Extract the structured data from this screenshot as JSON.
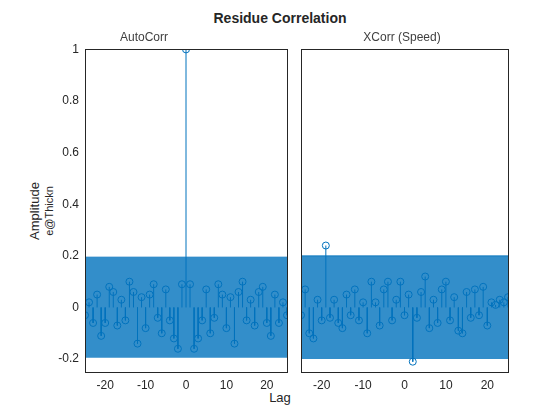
{
  "title": "Residue Correlation",
  "xlabel": "Lag",
  "ylabel": [
    "Amplitude",
    "e@Thickn"
  ],
  "chart_data": [
    {
      "type": "stem",
      "title": "AutoCorr",
      "color": "#0072BD",
      "marker": "circle",
      "grid": false,
      "x": [
        -25,
        -24,
        -23,
        -22,
        -21,
        -20,
        -19,
        -18,
        -17,
        -16,
        -15,
        -14,
        -13,
        -12,
        -11,
        -10,
        -9,
        -8,
        -7,
        -6,
        -5,
        -4,
        -3,
        -2,
        -1,
        0,
        1,
        2,
        3,
        4,
        5,
        6,
        7,
        8,
        9,
        10,
        11,
        12,
        13,
        14,
        15,
        16,
        17,
        18,
        19,
        20,
        21,
        22,
        23,
        24,
        25
      ],
      "values": [
        -0.03,
        0.02,
        -0.06,
        0.05,
        -0.11,
        -0.06,
        0.08,
        0.06,
        -0.07,
        0.03,
        -0.05,
        0.1,
        0.06,
        -0.14,
        0.04,
        -0.08,
        0.05,
        0.09,
        -0.04,
        -0.1,
        0.07,
        -0.05,
        -0.12,
        -0.16,
        0.09,
        1,
        0.09,
        -0.16,
        -0.12,
        -0.05,
        0.07,
        -0.1,
        -0.04,
        0.09,
        0.05,
        -0.08,
        0.04,
        -0.14,
        0.06,
        0.1,
        -0.05,
        0.03,
        -0.07,
        0.06,
        0.08,
        -0.06,
        -0.11,
        0.05,
        -0.06,
        0.02,
        -0.03
      ],
      "confidence_bound": 0.195,
      "xlim": [
        -25,
        25
      ],
      "xticks": [
        -20,
        -10,
        0,
        10,
        20
      ],
      "ylim": [
        -0.25,
        1
      ],
      "yticks": [
        -0.2,
        0,
        0.2,
        0.4,
        0.6,
        0.8,
        1
      ]
    },
    {
      "type": "stem",
      "title": "XCorr (Speed)",
      "color": "#0072BD",
      "marker": "circle",
      "grid": false,
      "tick_labels": "x",
      "x": [
        -25,
        -24,
        -23,
        -22,
        -21,
        -20,
        -19,
        -18,
        -17,
        -16,
        -15,
        -14,
        -13,
        -12,
        -11,
        -10,
        -9,
        -8,
        -7,
        -6,
        -5,
        -4,
        -3,
        -2,
        -1,
        0,
        1,
        2,
        3,
        4,
        5,
        6,
        7,
        8,
        9,
        10,
        11,
        12,
        13,
        14,
        15,
        16,
        17,
        18,
        19,
        20,
        21,
        22,
        23,
        24,
        25
      ],
      "values": [
        -0.03,
        0.07,
        -0.1,
        -0.12,
        0.03,
        -0.05,
        0.24,
        -0.04,
        0.03,
        -0.06,
        -0.08,
        0.05,
        -0.03,
        0.07,
        -0.05,
        0.02,
        -0.1,
        0.1,
        0.02,
        -0.07,
        0.07,
        0.1,
        -0.05,
        0.03,
        0.1,
        -0.03,
        0.05,
        -0.21,
        -0.04,
        0.06,
        0.12,
        -0.08,
        0.03,
        -0.06,
        0.07,
        0.1,
        -0.05,
        0.04,
        -0.09,
        -0.1,
        0.06,
        -0.04,
        0.07,
        -0.03,
        0.08,
        -0.07,
        0.02,
        0.01,
        0.03,
        0.02,
        0.04
      ],
      "confidence_bound": 0.2,
      "xlim": [
        -25,
        25
      ],
      "xticks": [
        -20,
        -10,
        0,
        10,
        20
      ],
      "ylim": [
        -0.25,
        1
      ],
      "yticks": [
        -0.2,
        0,
        0.2,
        0.4,
        0.6,
        0.8,
        1
      ]
    }
  ]
}
